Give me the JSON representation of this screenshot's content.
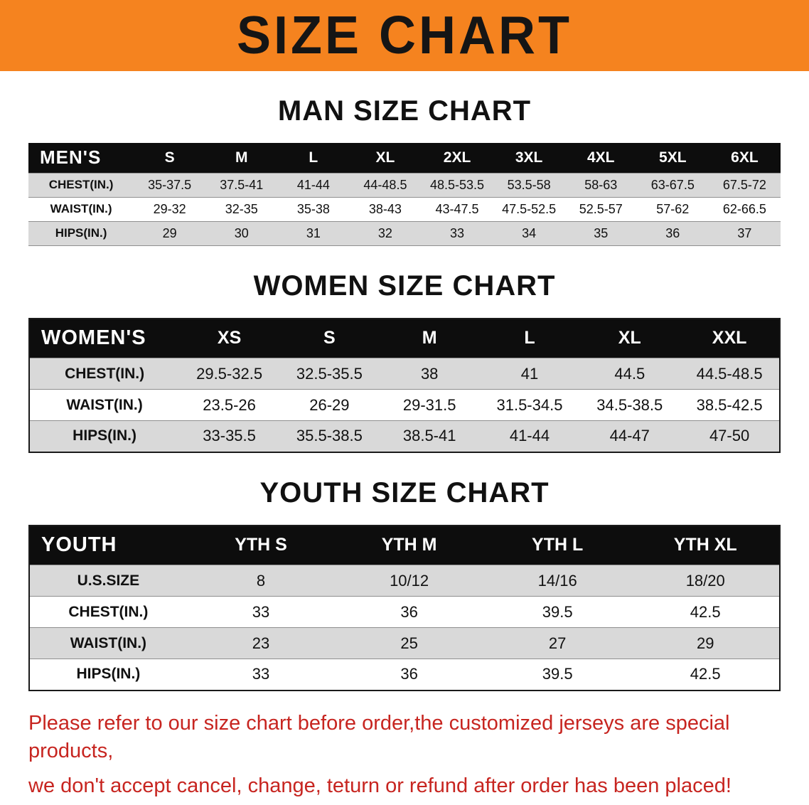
{
  "banner": {
    "title": "SIZE CHART",
    "bg_color": "#F5831F"
  },
  "men": {
    "heading": "MAN SIZE CHART",
    "header": [
      "MEN'S",
      "S",
      "M",
      "L",
      "XL",
      "2XL",
      "3XL",
      "4XL",
      "5XL",
      "6XL"
    ],
    "rows": [
      [
        "CHEST(IN.)",
        "35-37.5",
        "37.5-41",
        "41-44",
        "44-48.5",
        "48.5-53.5",
        "53.5-58",
        "58-63",
        "63-67.5",
        "67.5-72"
      ],
      [
        "WAIST(IN.)",
        "29-32",
        "32-35",
        "35-38",
        "38-43",
        "43-47.5",
        "47.5-52.5",
        "52.5-57",
        "57-62",
        "62-66.5"
      ],
      [
        "HIPS(IN.)",
        "29",
        "30",
        "31",
        "32",
        "33",
        "34",
        "35",
        "36",
        "37"
      ]
    ]
  },
  "women": {
    "heading": "WOMEN SIZE CHART",
    "header": [
      "WOMEN'S",
      "XS",
      "S",
      "M",
      "L",
      "XL",
      "XXL"
    ],
    "rows": [
      [
        "CHEST(IN.)",
        "29.5-32.5",
        "32.5-35.5",
        "38",
        "41",
        "44.5",
        "44.5-48.5"
      ],
      [
        "WAIST(IN.)",
        "23.5-26",
        "26-29",
        "29-31.5",
        "31.5-34.5",
        "34.5-38.5",
        "38.5-42.5"
      ],
      [
        "HIPS(IN.)",
        "33-35.5",
        "35.5-38.5",
        "38.5-41",
        "41-44",
        "44-47",
        "47-50"
      ]
    ]
  },
  "youth": {
    "heading": "YOUTH SIZE CHART",
    "header": [
      "YOUTH",
      "YTH S",
      "YTH M",
      "YTH L",
      "YTH XL"
    ],
    "rows": [
      [
        "U.S.SIZE",
        "8",
        "10/12",
        "14/16",
        "18/20"
      ],
      [
        "CHEST(IN.)",
        "33",
        "36",
        "39.5",
        "42.5"
      ],
      [
        "WAIST(IN.)",
        "23",
        "25",
        "27",
        "29"
      ],
      [
        "HIPS(IN.)",
        "33",
        "36",
        "39.5",
        "42.5"
      ]
    ]
  },
  "notice": {
    "line1": "Please refer to our size chart before order,the customized jerseys are special products,",
    "line2": "we don't accept cancel, change, teturn or refund after order has been placed!",
    "color": "#C72520"
  }
}
